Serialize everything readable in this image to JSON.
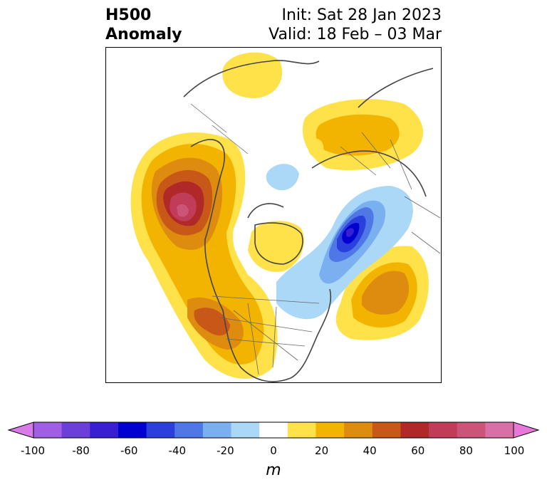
{
  "header": {
    "title_line1": "H500",
    "title_line2": "Anomaly",
    "init_text": "Init: Sat 28 Jan 2023",
    "valid_text": "Valid: 18 Feb – 03 Mar"
  },
  "colorbar": {
    "unit": "m",
    "tick_labels": [
      "-100",
      "-80",
      "-60",
      "-40",
      "-20",
      "0",
      "20",
      "40",
      "60",
      "80",
      "100"
    ],
    "colors": [
      "#d87ae8",
      "#9f5ee4",
      "#6c3fd8",
      "#3a1fd0",
      "#0000d0",
      "#2a3fdc",
      "#4f78e6",
      "#7ab0f0",
      "#acd8f8",
      "#ffffff",
      "#ffe14a",
      "#f2b400",
      "#de8c10",
      "#c85818",
      "#b02828",
      "#c03c58",
      "#cc5478",
      "#d870a8",
      "#e878d8"
    ]
  },
  "map": {
    "projection": "polar stereographic, North America / North Atlantic",
    "features": [
      "positive anomaly west of North America",
      "negative anomaly Labrador Sea / Greenland",
      "positive anomaly central Atlantic",
      "positive anomaly northern Europe"
    ]
  }
}
